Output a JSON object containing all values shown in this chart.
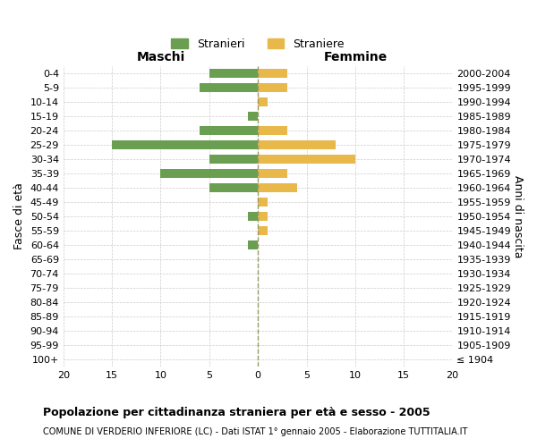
{
  "age_groups": [
    "100+",
    "95-99",
    "90-94",
    "85-89",
    "80-84",
    "75-79",
    "70-74",
    "65-69",
    "60-64",
    "55-59",
    "50-54",
    "45-49",
    "40-44",
    "35-39",
    "30-34",
    "25-29",
    "20-24",
    "15-19",
    "10-14",
    "5-9",
    "0-4"
  ],
  "birth_years": [
    "≤ 1904",
    "1905-1909",
    "1910-1914",
    "1915-1919",
    "1920-1924",
    "1925-1929",
    "1930-1934",
    "1935-1939",
    "1940-1944",
    "1945-1949",
    "1950-1954",
    "1955-1959",
    "1960-1964",
    "1965-1969",
    "1970-1974",
    "1975-1979",
    "1980-1984",
    "1985-1989",
    "1990-1994",
    "1995-1999",
    "2000-2004"
  ],
  "maschi": [
    0,
    0,
    0,
    0,
    0,
    0,
    0,
    0,
    1,
    0,
    1,
    0,
    5,
    10,
    5,
    15,
    6,
    1,
    0,
    6,
    5
  ],
  "femmine": [
    0,
    0,
    0,
    0,
    0,
    0,
    0,
    0,
    0,
    1,
    1,
    1,
    4,
    3,
    10,
    8,
    3,
    0,
    1,
    3,
    3
  ],
  "male_color": "#6a9e50",
  "female_color": "#e8b84b",
  "xlim": 20,
  "title": "Popolazione per cittadinanza straniera per età e sesso - 2005",
  "subtitle": "COMUNE DI VERDERIO INFERIORE (LC) - Dati ISTAT 1° gennaio 2005 - Elaborazione TUTTITALIA.IT",
  "ylabel_left": "Fasce di età",
  "ylabel_right": "Anni di nascita",
  "xlabel_maschi": "Maschi",
  "xlabel_femmine": "Femmine",
  "legend_maschi": "Stranieri",
  "legend_femmine": "Straniere",
  "bg_color": "#ffffff",
  "grid_color": "#cccccc",
  "center_line_color": "#999966",
  "tick_fontsize": 8,
  "label_fontsize": 9
}
